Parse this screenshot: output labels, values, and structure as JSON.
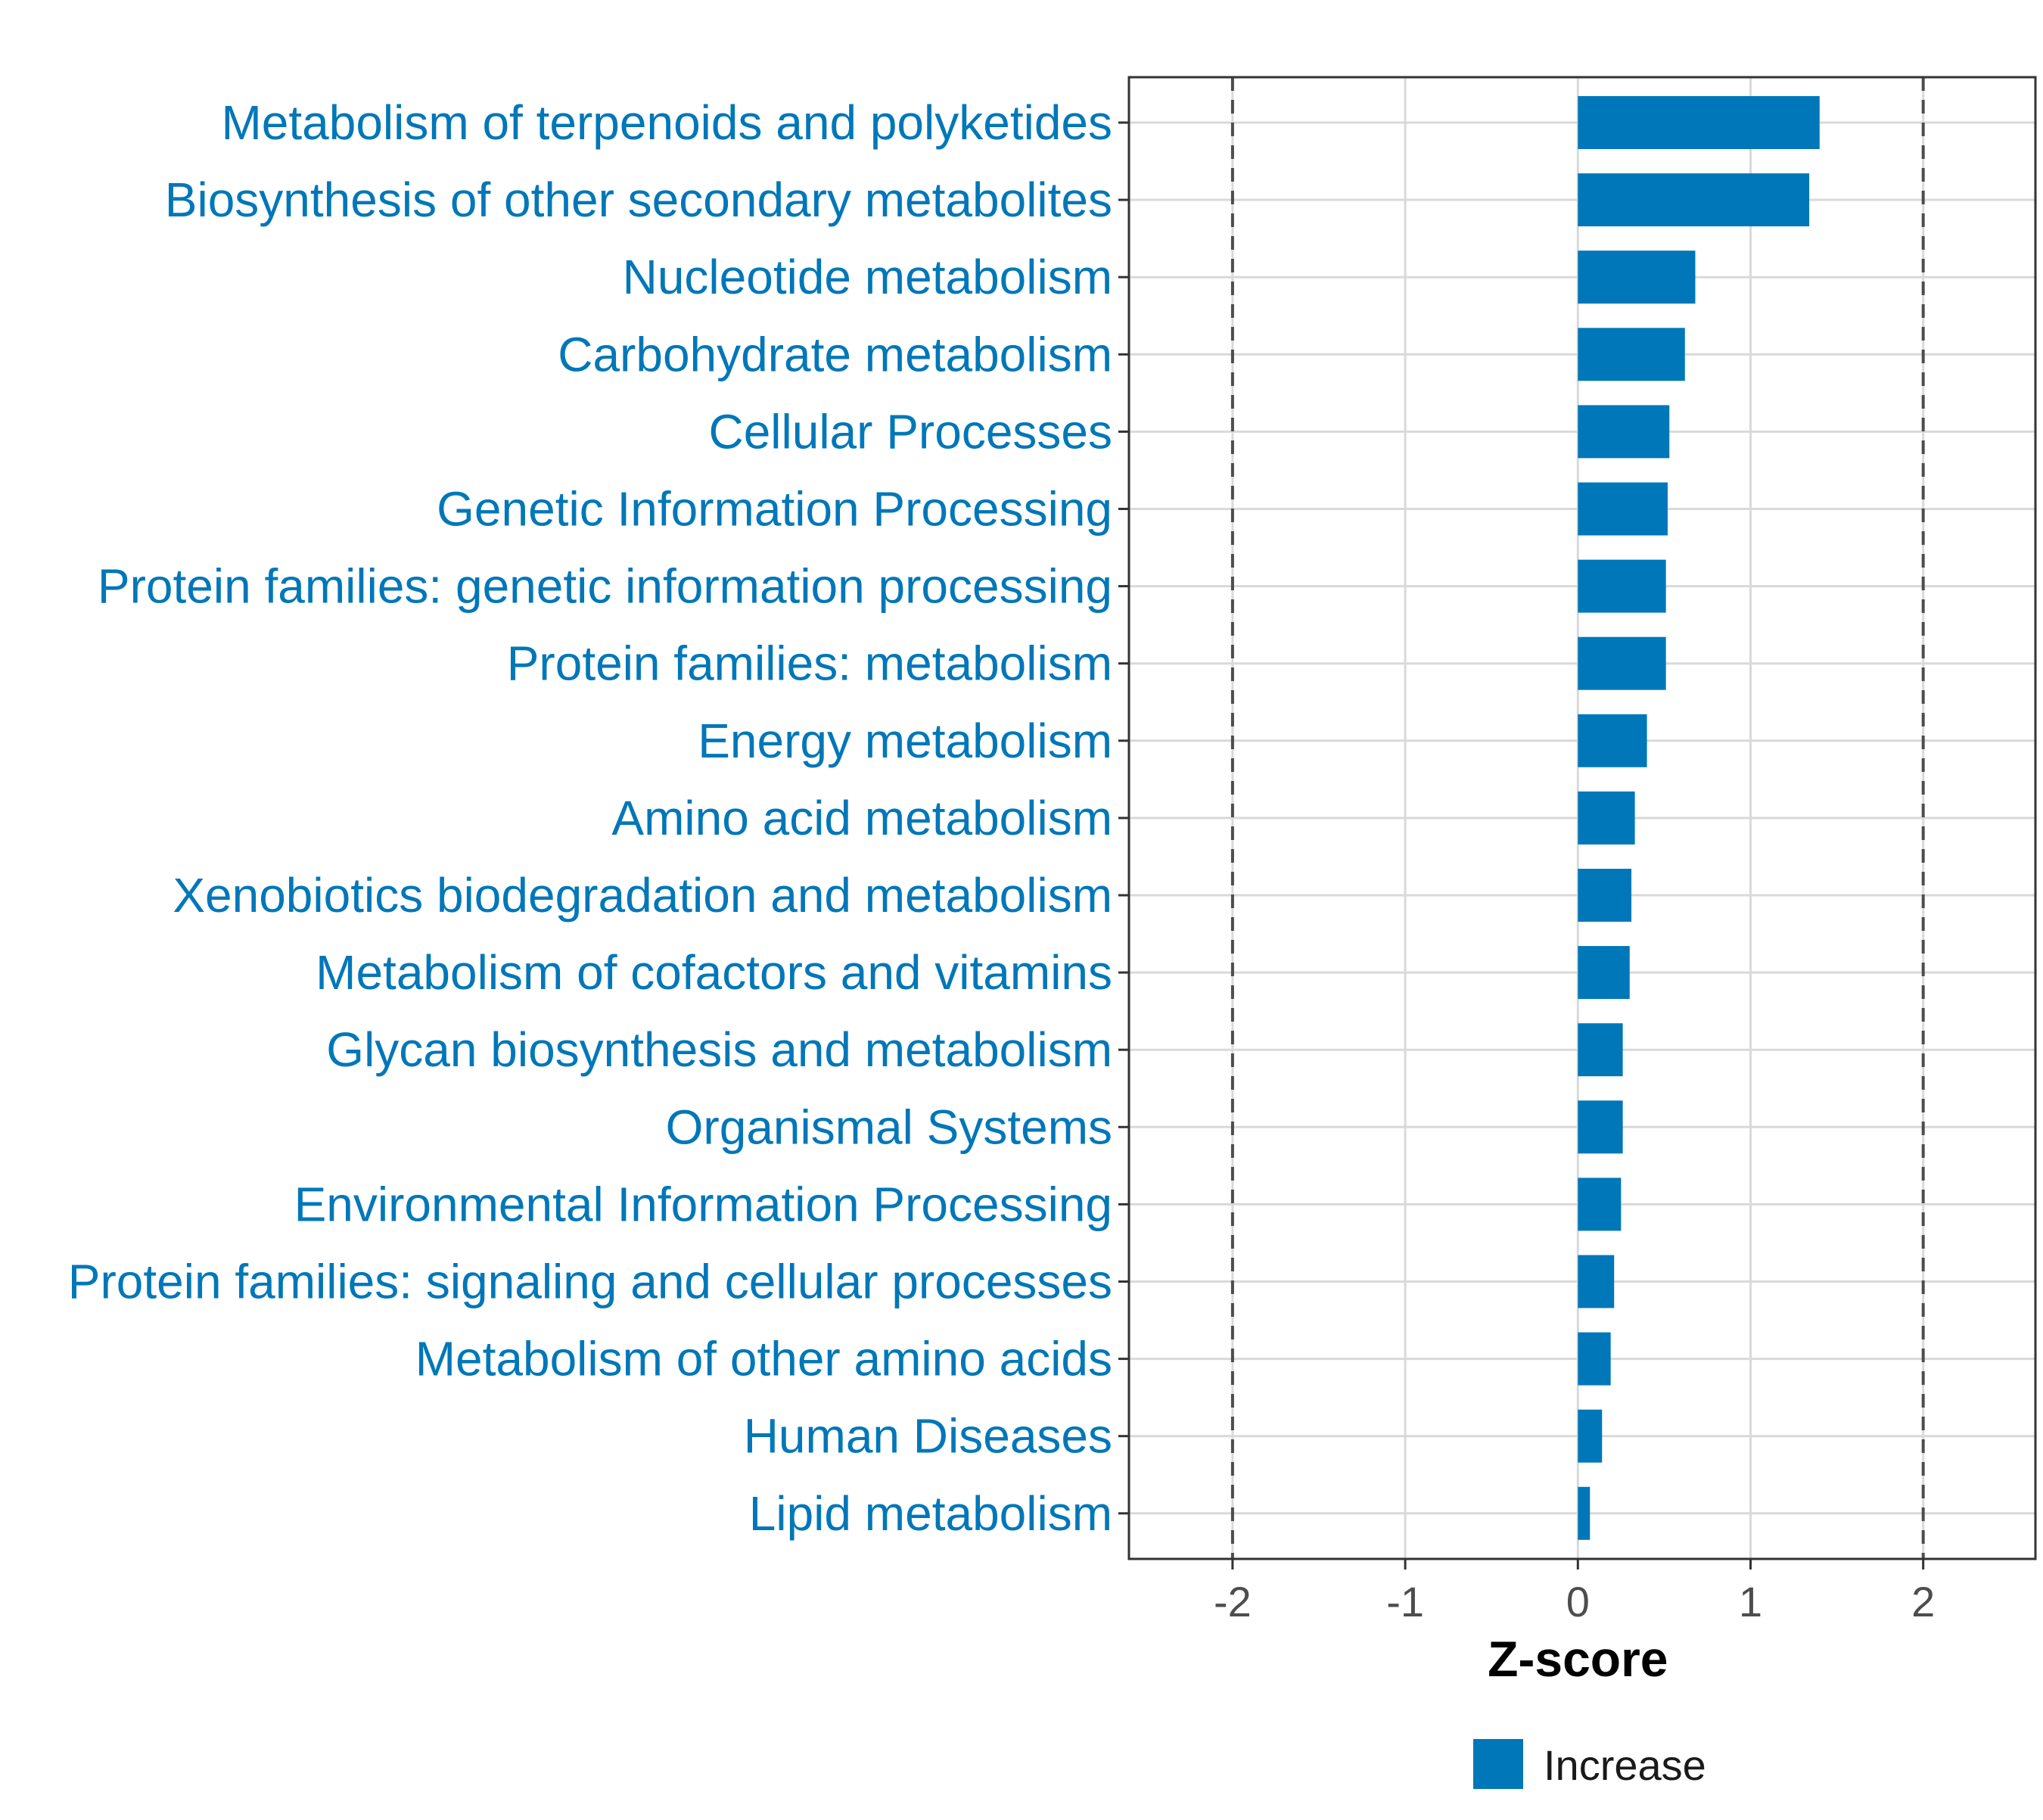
{
  "chart_data": {
    "type": "bar",
    "orientation": "horizontal",
    "title": "",
    "xlabel": "Z-score",
    "ylabel": "",
    "xlim": [
      -2.6,
      2.65
    ],
    "xticks": [
      -2,
      -1,
      0,
      1,
      2
    ],
    "reference_lines": [
      -2,
      2
    ],
    "grid": true,
    "categories": [
      "Metabolism of terpenoids and polyketides",
      "Biosynthesis of other secondary metabolites",
      "Nucleotide metabolism",
      "Carbohydrate metabolism",
      "Cellular Processes",
      "Genetic Information Processing",
      "Protein families: genetic information processing",
      "Protein families: metabolism",
      "Energy metabolism",
      "Amino acid metabolism",
      "Xenobiotics biodegradation and metabolism",
      "Metabolism of cofactors and vitamins",
      "Glycan biosynthesis and metabolism",
      "Organismal Systems",
      "Environmental Information Processing",
      "Protein families: signaling and cellular processes",
      "Metabolism of other amino acids",
      "Human Diseases",
      "Lipid metabolism"
    ],
    "values": [
      1.4,
      1.34,
      0.68,
      0.62,
      0.53,
      0.52,
      0.51,
      0.51,
      0.4,
      0.33,
      0.31,
      0.3,
      0.26,
      0.26,
      0.25,
      0.21,
      0.19,
      0.14,
      0.07
    ],
    "series": [
      {
        "name": "Increase",
        "color": "#0077B8"
      }
    ],
    "legend": {
      "position": "bottom",
      "entries": [
        "Increase"
      ]
    },
    "colors": {
      "bar": "#0077B8",
      "category_label": "#0077B8",
      "grid": "#d9d9d9",
      "reference_line": "#4d4d4d",
      "panel_border": "#333333"
    }
  }
}
